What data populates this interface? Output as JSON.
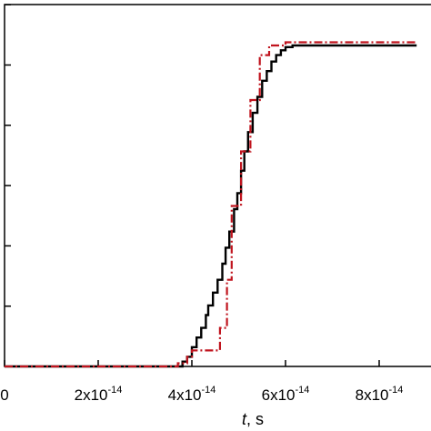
{
  "chart_data": {
    "type": "line",
    "title": "",
    "xlabel_var": "t",
    "xlabel_unit": ", s",
    "ylabel": "",
    "xlim": [
      0,
      8.8e-14
    ],
    "ylim": [
      0,
      1.05
    ],
    "x_ticks": [
      {
        "value": 0,
        "mantissa": "0",
        "exp": ""
      },
      {
        "value": 2e-14,
        "mantissa": "2x10",
        "exp": "-14"
      },
      {
        "value": 4e-14,
        "mantissa": "4x10",
        "exp": "-14"
      },
      {
        "value": 6e-14,
        "mantissa": "6x10",
        "exp": "-14"
      },
      {
        "value": 8e-14,
        "mantissa": "8x10",
        "exp": "-14"
      }
    ],
    "y_ticks": [
      0,
      0.166,
      0.333,
      0.5,
      0.666,
      0.833,
      1.0
    ],
    "grid": false,
    "legend": "none",
    "series": [
      {
        "style": "solid",
        "color": "#000000",
        "x": [
          0,
          3.8e-14,
          3.9e-14,
          4e-14,
          4.1e-14,
          4.2e-14,
          4.3e-14,
          4.35e-14,
          4.45e-14,
          4.55e-14,
          4.65e-14,
          4.72e-14,
          4.8e-14,
          4.9e-14,
          4.97e-14,
          5.05e-14,
          5.12e-14,
          5.2e-14,
          5.3e-14,
          5.4e-14,
          5.5e-14,
          5.6e-14,
          5.7e-14,
          5.8e-14,
          5.9e-14,
          6e-14,
          6.15e-14,
          8.8e-14
        ],
        "y": [
          0,
          0.015,
          0.03,
          0.06,
          0.09,
          0.12,
          0.16,
          0.19,
          0.23,
          0.27,
          0.32,
          0.37,
          0.42,
          0.49,
          0.54,
          0.61,
          0.67,
          0.73,
          0.79,
          0.84,
          0.89,
          0.92,
          0.95,
          0.97,
          0.985,
          0.995,
          1.0,
          1.0
        ]
      },
      {
        "style": "dash-dot",
        "color": "#c0141e",
        "x": [
          0,
          3.7e-14,
          3.9e-14,
          4e-14,
          4.5e-14,
          4.6e-14,
          4.75e-14,
          4.85e-14,
          5.05e-14,
          5.25e-14,
          5.45e-14,
          5.65e-14,
          5.85e-14,
          6e-14,
          6.2e-14,
          8.8e-14
        ],
        "y": [
          0,
          0.01,
          0.03,
          0.05,
          0.05,
          0.12,
          0.27,
          0.5,
          0.67,
          0.83,
          0.97,
          1.0,
          1.0,
          1.01,
          1.01,
          1.01
        ]
      }
    ]
  }
}
